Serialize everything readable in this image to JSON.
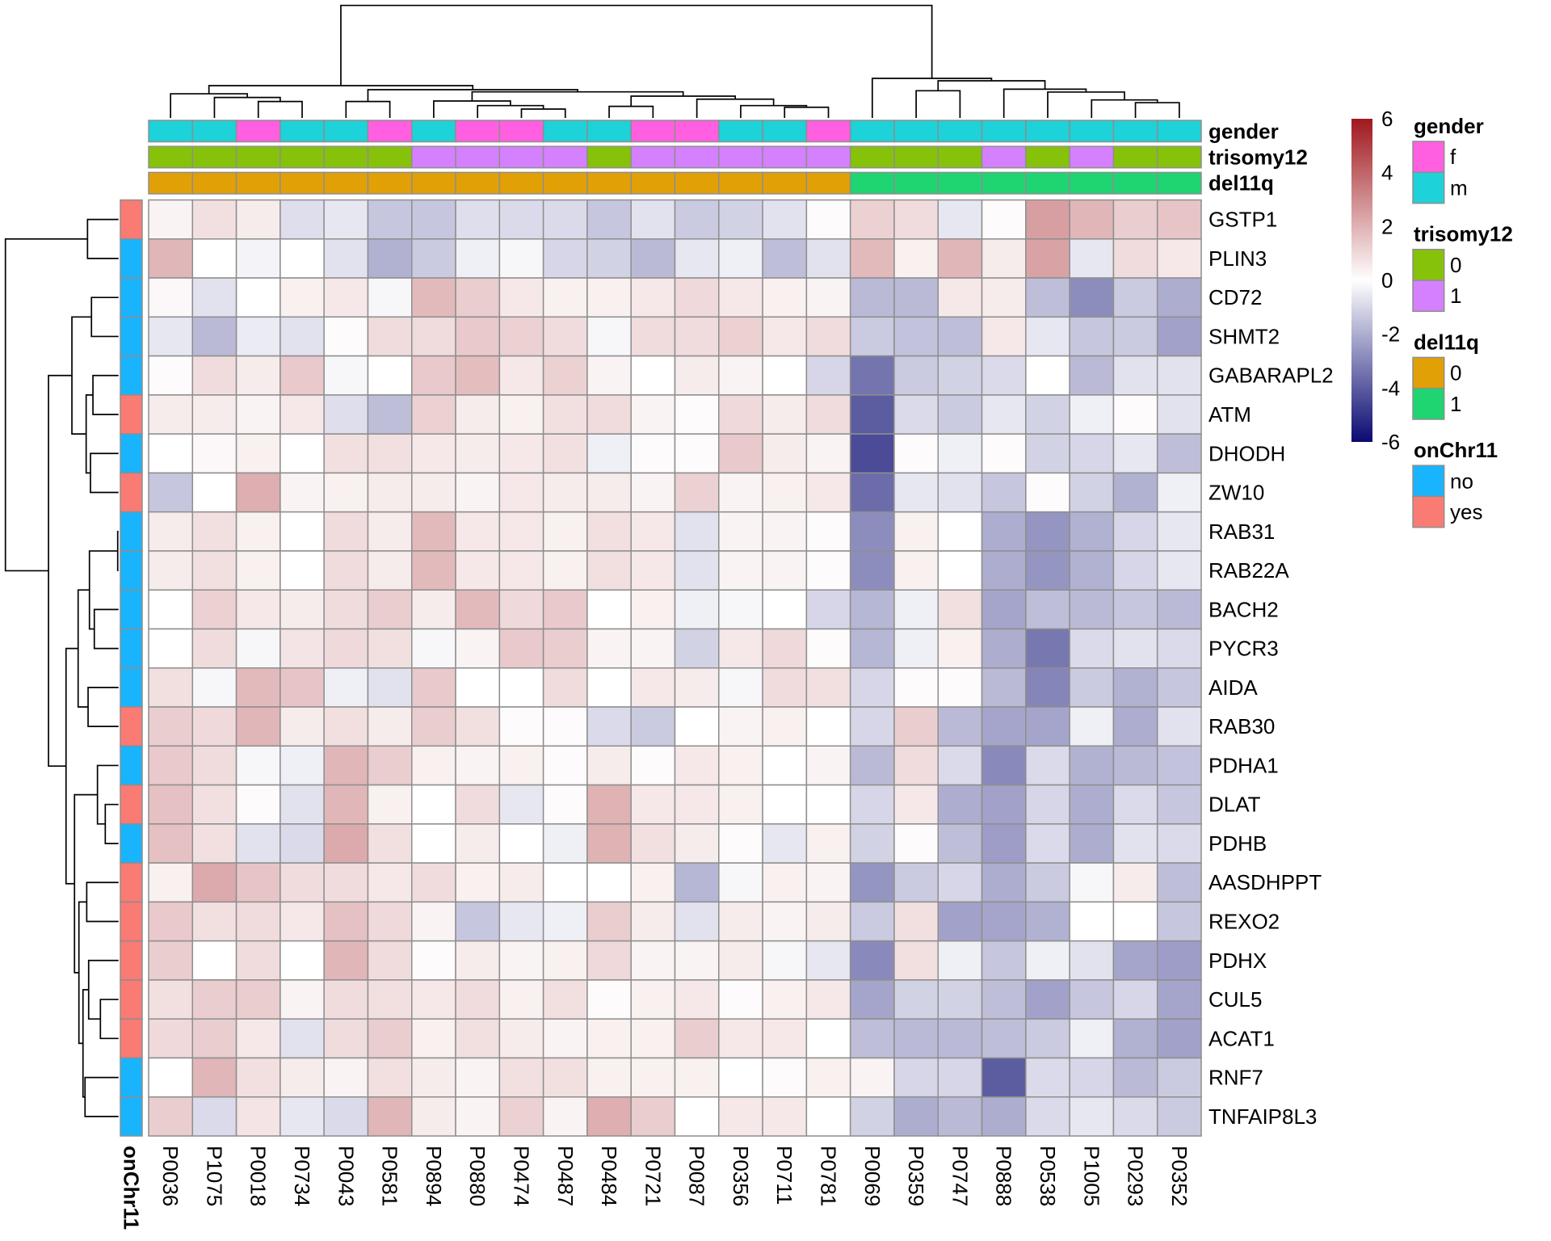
{
  "chart_data": {
    "type": "heatmap",
    "title": "",
    "rows": [
      "GSTP1",
      "PLIN3",
      "CD72",
      "SHMT2",
      "GABARAPL2",
      "ATM",
      "DHODH",
      "ZW10",
      "RAB31",
      "RAB22A",
      "BACH2",
      "PYCR3",
      "AIDA",
      "RAB30",
      "PDHA1",
      "DLAT",
      "PDHB",
      "AASDHPPT",
      "REXO2",
      "PDHX",
      "CUL5",
      "ACAT1",
      "RNF7",
      "TNFAIP8L3"
    ],
    "columns": [
      "P0036",
      "P1075",
      "P0018",
      "P0734",
      "P0043",
      "P0581",
      "P0894",
      "P0880",
      "P0474",
      "P0487",
      "P0484",
      "P0721",
      "P0087",
      "P0356",
      "P0711",
      "P0781",
      "P0069",
      "P0359",
      "P0747",
      "P0888",
      "P0538",
      "P1005",
      "P0293",
      "P0352"
    ],
    "values": [
      [
        0.3,
        0.8,
        0.5,
        -0.8,
        -0.6,
        -1.4,
        -1.4,
        -0.8,
        -0.9,
        -0.9,
        -1.4,
        -0.7,
        -1.3,
        -1.1,
        -0.7,
        0.1,
        1.2,
        0.9,
        -0.6,
        0.1,
        2.5,
        1.9,
        1.3,
        1.5
      ],
      [
        1.9,
        0.0,
        -0.3,
        0.0,
        -0.7,
        -1.9,
        -1.3,
        -0.4,
        -0.2,
        -1.0,
        -1.1,
        -1.7,
        -0.6,
        -0.4,
        -1.6,
        -0.7,
        1.8,
        0.4,
        1.9,
        0.5,
        2.4,
        -0.6,
        0.9,
        0.6
      ],
      [
        0.2,
        -0.7,
        0.0,
        0.4,
        0.6,
        -0.2,
        1.8,
        1.3,
        0.6,
        0.4,
        0.4,
        0.6,
        1.0,
        0.6,
        0.4,
        0.3,
        -1.7,
        -1.7,
        0.6,
        0.5,
        -1.6,
        -2.8,
        -1.3,
        -2.0
      ],
      [
        -0.6,
        -1.7,
        -0.5,
        -0.7,
        0.1,
        0.9,
        0.9,
        1.4,
        1.2,
        0.9,
        -0.2,
        0.9,
        0.9,
        1.2,
        0.6,
        0.9,
        -1.3,
        -1.5,
        -1.6,
        0.6,
        -0.6,
        -1.4,
        -1.3,
        -2.3
      ],
      [
        0.1,
        0.9,
        0.5,
        1.4,
        -0.2,
        0.0,
        1.4,
        1.7,
        0.6,
        1.2,
        0.3,
        0.0,
        0.5,
        0.3,
        0.0,
        -1.0,
        -3.4,
        -1.3,
        -1.1,
        -0.9,
        0.0,
        -1.7,
        -0.7,
        -0.7
      ],
      [
        0.5,
        0.5,
        0.3,
        0.6,
        -0.8,
        -1.6,
        1.2,
        0.5,
        0.4,
        0.8,
        0.9,
        0.3,
        0.1,
        1.0,
        0.5,
        0.9,
        -4.0,
        -0.9,
        -1.3,
        -0.6,
        -1.1,
        -0.4,
        0.1,
        -0.7
      ],
      [
        0.0,
        0.2,
        0.4,
        0.0,
        0.8,
        0.8,
        0.6,
        0.5,
        0.6,
        0.8,
        -0.4,
        0.1,
        0.1,
        1.4,
        0.5,
        0.3,
        -4.4,
        0.1,
        -0.4,
        0.1,
        -1.1,
        -1.0,
        -0.6,
        -1.6
      ],
      [
        -1.4,
        0.0,
        2.1,
        0.3,
        0.4,
        0.5,
        0.5,
        0.3,
        0.6,
        0.5,
        0.5,
        0.3,
        1.2,
        0.3,
        0.4,
        0.6,
        -3.6,
        -0.6,
        -0.7,
        -1.4,
        0.1,
        -1.1,
        -1.9,
        -0.4
      ],
      [
        0.5,
        0.8,
        0.4,
        0.0,
        0.9,
        0.5,
        1.8,
        0.6,
        0.6,
        0.4,
        0.8,
        0.6,
        -0.7,
        0.3,
        0.3,
        0.1,
        -2.8,
        0.4,
        0.0,
        -2.0,
        -2.6,
        -1.9,
        -1.0,
        -0.6
      ],
      [
        0.5,
        0.8,
        0.4,
        0.0,
        0.9,
        0.5,
        1.8,
        0.6,
        0.6,
        0.4,
        0.8,
        0.6,
        -0.7,
        0.3,
        0.3,
        0.1,
        -2.8,
        0.4,
        0.0,
        -2.0,
        -2.6,
        -1.9,
        -1.0,
        -0.6
      ],
      [
        0.0,
        1.2,
        0.6,
        0.5,
        0.9,
        1.3,
        0.5,
        1.8,
        1.0,
        1.4,
        0.0,
        0.4,
        -0.4,
        -0.2,
        0.0,
        -1.0,
        -1.8,
        -0.4,
        0.8,
        -2.2,
        -1.6,
        -1.7,
        -1.4,
        -1.7
      ],
      [
        0.0,
        0.9,
        -0.2,
        0.7,
        1.0,
        0.8,
        -0.2,
        0.3,
        1.4,
        1.3,
        0.3,
        0.3,
        -1.1,
        0.6,
        1.0,
        0.1,
        -1.8,
        -0.4,
        0.4,
        -2.0,
        -3.3,
        -0.9,
        -0.7,
        -0.9
      ],
      [
        0.8,
        -0.2,
        1.8,
        1.5,
        -0.4,
        -0.7,
        1.4,
        0.0,
        0.0,
        0.9,
        0.0,
        0.6,
        0.5,
        -0.2,
        0.9,
        0.8,
        -1.0,
        0.1,
        0.1,
        -1.7,
        -3.0,
        -1.3,
        -1.9,
        -1.4
      ],
      [
        1.3,
        1.0,
        1.9,
        0.5,
        0.8,
        0.5,
        1.3,
        0.8,
        0.1,
        0.1,
        -0.9,
        -1.3,
        0.0,
        0.3,
        0.4,
        0.0,
        -1.0,
        1.3,
        -1.7,
        -2.2,
        -2.2,
        -0.4,
        -2.0,
        -0.7
      ],
      [
        1.4,
        0.9,
        -0.2,
        -0.4,
        1.9,
        1.3,
        0.4,
        0.3,
        0.4,
        0.1,
        0.5,
        0.1,
        0.6,
        0.4,
        0.0,
        0.3,
        -1.7,
        0.9,
        -0.9,
        -2.9,
        -0.9,
        -1.9,
        -1.7,
        -1.5
      ],
      [
        1.6,
        0.8,
        0.1,
        -0.7,
        1.9,
        0.4,
        0.0,
        0.9,
        -0.6,
        0.1,
        2.0,
        0.6,
        0.6,
        0.4,
        0.0,
        0.0,
        -1.0,
        0.6,
        -2.0,
        -2.3,
        -1.0,
        -2.0,
        -0.9,
        -1.4
      ],
      [
        1.6,
        0.8,
        -0.7,
        -0.9,
        2.2,
        0.8,
        0.0,
        0.5,
        0.0,
        -0.4,
        2.0,
        0.8,
        0.5,
        0.1,
        -0.6,
        0.4,
        -1.1,
        0.1,
        -1.6,
        -2.4,
        -0.9,
        -2.0,
        -0.7,
        -0.9
      ],
      [
        0.4,
        2.2,
        1.5,
        0.9,
        0.9,
        0.6,
        0.9,
        0.4,
        0.5,
        0.0,
        0.0,
        0.4,
        -1.8,
        -0.2,
        0.4,
        0.3,
        -2.6,
        -1.3,
        -1.0,
        -2.0,
        -1.3,
        -0.2,
        0.5,
        -1.6
      ],
      [
        1.4,
        0.8,
        0.9,
        0.6,
        1.6,
        1.0,
        0.3,
        -1.4,
        -0.6,
        -0.4,
        1.3,
        0.5,
        -0.7,
        0.5,
        0.3,
        0.5,
        -1.3,
        0.8,
        -2.3,
        -2.2,
        -1.9,
        0.0,
        0.0,
        -1.4
      ],
      [
        1.3,
        0.0,
        0.9,
        0.0,
        1.9,
        0.9,
        0.1,
        0.5,
        0.3,
        0.4,
        1.0,
        0.3,
        0.3,
        0.5,
        -0.2,
        -0.6,
        -2.9,
        0.8,
        -0.4,
        -1.4,
        -0.4,
        -0.7,
        -2.2,
        -2.4
      ],
      [
        0.8,
        1.3,
        1.3,
        0.3,
        0.9,
        0.8,
        0.6,
        0.9,
        0.4,
        0.8,
        0.1,
        0.4,
        0.6,
        0.1,
        0.4,
        0.6,
        -2.2,
        -1.1,
        -1.1,
        -1.6,
        -2.3,
        -1.4,
        -1.0,
        -2.2
      ],
      [
        1.0,
        1.3,
        0.6,
        -0.7,
        0.9,
        1.3,
        0.4,
        0.8,
        0.5,
        0.3,
        0.4,
        0.4,
        1.3,
        0.6,
        0.6,
        0.0,
        -1.6,
        -1.7,
        -1.7,
        -1.6,
        -1.3,
        -0.4,
        -1.9,
        -2.3
      ],
      [
        0.0,
        1.9,
        0.8,
        0.5,
        0.3,
        0.8,
        0.5,
        0.3,
        0.8,
        0.8,
        0.4,
        0.4,
        0.4,
        0.0,
        0.1,
        0.4,
        0.3,
        -1.0,
        -1.0,
        -4.0,
        -0.9,
        -1.0,
        -1.7,
        -1.3
      ],
      [
        1.3,
        -0.9,
        0.7,
        -0.6,
        -0.9,
        1.9,
        0.5,
        0.3,
        1.2,
        0.3,
        2.1,
        1.3,
        0.0,
        0.6,
        0.6,
        0.0,
        -1.1,
        -2.0,
        -1.7,
        -2.0,
        -0.9,
        -0.6,
        -0.9,
        -1.3
      ]
    ],
    "color_scale": {
      "min": -6,
      "max": 6,
      "colors": [
        "#0a0a72",
        "#ffffff",
        "#a0181e"
      ],
      "ticks": [
        6,
        4,
        2,
        0,
        -2,
        -4,
        -6
      ],
      "tick_labels": [
        "6",
        "4",
        "2",
        "0",
        "-2",
        "-4",
        "-6"
      ]
    },
    "column_annotation_tracks": [
      {
        "name": "gender",
        "values": [
          "m",
          "m",
          "f",
          "m",
          "m",
          "f",
          "m",
          "f",
          "f",
          "m",
          "m",
          "f",
          "f",
          "m",
          "m",
          "f",
          "m",
          "m",
          "m",
          "m",
          "m",
          "m",
          "m",
          "m"
        ]
      },
      {
        "name": "trisomy12",
        "values": [
          "0",
          "0",
          "0",
          "0",
          "0",
          "0",
          "1",
          "1",
          "1",
          "1",
          "0",
          "1",
          "1",
          "1",
          "1",
          "1",
          "0",
          "0",
          "0",
          "1",
          "0",
          "1",
          "0",
          "0"
        ]
      },
      {
        "name": "del11q",
        "values": [
          "0",
          "0",
          "0",
          "0",
          "0",
          "0",
          "0",
          "0",
          "0",
          "0",
          "0",
          "0",
          "0",
          "0",
          "0",
          "0",
          "1",
          "1",
          "1",
          "1",
          "1",
          "1",
          "1",
          "1"
        ]
      }
    ],
    "row_annotation_tracks": [
      {
        "name": "onChr11",
        "values": [
          "yes",
          "no",
          "no",
          "no",
          "no",
          "yes",
          "no",
          "yes",
          "no",
          "no",
          "no",
          "no",
          "no",
          "yes",
          "no",
          "yes",
          "no",
          "yes",
          "yes",
          "yes",
          "yes",
          "yes",
          "no",
          "no"
        ]
      }
    ],
    "legends": [
      {
        "title": "gender",
        "items": [
          {
            "label": "f",
            "color": "#ff5fe0"
          },
          {
            "label": "m",
            "color": "#1dd2d8"
          }
        ]
      },
      {
        "title": "trisomy12",
        "items": [
          {
            "label": "0",
            "color": "#86c20a"
          },
          {
            "label": "1",
            "color": "#d580ff"
          }
        ]
      },
      {
        "title": "del11q",
        "items": [
          {
            "label": "0",
            "color": "#e2a007"
          },
          {
            "label": "1",
            "color": "#1ed572"
          }
        ]
      },
      {
        "title": "onChr11",
        "items": [
          {
            "label": "no",
            "color": "#19b4fe"
          },
          {
            "label": "yes",
            "color": "#fa7a74"
          }
        ]
      }
    ],
    "row_dendrogram": {
      "h": 1,
      "c": [
        {
          "h": 0.274,
          "c": [
            0,
            1
          ]
        },
        {
          "h": 0.619,
          "c": [
            {
              "h": 0.412,
              "c": [
                {
                  "h": 0.239,
                  "c": [
                    2,
                    3
                  ]
                },
                {
                  "h": 0.286,
                  "c": [
                    {
                      "h": 0.226,
                      "c": [
                        4,
                        5
                      ]
                    },
                    {
                      "h": 0.248,
                      "c": [
                        6,
                        7
                      ]
                    }
                  ]
                }
              ]
            },
            {
              "h": 0.464,
              "c": [
                {
                  "h": 0.357,
                  "c": [
                    {
                      "h": 0.257,
                      "c": [
                        {
                          "h": 0.007,
                          "c": [
                            8,
                            9
                          ]
                        },
                        {
                          "h": 0.214,
                          "c": [
                            10,
                            11
                          ]
                        }
                      ]
                    },
                    {
                      "h": 0.269,
                      "c": [
                        12,
                        13
                      ]
                    }
                  ]
                },
                {
                  "h": 0.389,
                  "c": [
                    {
                      "h": 0.186,
                      "c": [
                        14,
                        {
                          "h": 0.117,
                          "c": [
                            15,
                            16
                          ]
                        }
                      ]
                    },
                    {
                      "h": 0.35,
                      "c": [
                        {
                          "h": 0.281,
                          "c": [
                            17,
                            18
                          ]
                        },
                        {
                          "h": 0.314,
                          "c": [
                            {
                              "h": 0.264,
                              "c": [
                                19,
                                {
                                  "h": 0.16,
                                  "c": [
                                    20,
                                    21
                                  ]
                                }
                              ]
                            },
                            {
                              "h": 0.296,
                              "c": [
                                22,
                                23
                              ]
                            }
                          ]
                        }
                      ]
                    }
                  ]
                }
              ]
            }
          ]
        }
      ]
    },
    "column_dendrogram": {
      "h": 1,
      "c": [
        {
          "h": 0.287,
          "c": [
            {
              "h": 0.215,
              "c": [
                0,
                {
                  "h": 0.182,
                  "c": [
                    1,
                    {
                      "h": 0.146,
                      "c": [
                        2,
                        3
                      ]
                    }
                  ]
                }
              ]
            },
            {
              "h": 0.251,
              "c": [
                {
                  "h": 0.146,
                  "c": [
                    4,
                    5
                  ]
                },
                {
                  "h": 0.232,
                  "c": [
                    {
                      "h": 0.151,
                      "c": [
                        6,
                        {
                          "h": 0.11,
                          "c": [
                            7,
                            {
                              "h": 0.079,
                              "c": [
                                8,
                                9
                              ]
                            }
                          ]
                        }
                      ]
                    },
                    {
                      "h": 0.194,
                      "c": [
                        {
                          "h": 0.103,
                          "c": [
                            10,
                            11
                          ]
                        },
                        {
                          "h": 0.167,
                          "c": [
                            12,
                            {
                              "h": 0.11,
                              "c": [
                                13,
                                {
                                  "h": 0.095,
                                  "c": [
                                    14,
                                    15
                                  ]
                                }
                              ]
                            }
                          ]
                        }
                      ]
                    }
                  ]
                }
              ]
            }
          ]
        },
        {
          "h": 0.352,
          "c": [
            16,
            {
              "h": 0.33,
              "c": [
                {
                  "h": 0.242,
                  "c": [
                    17,
                    18
                  ]
                },
                {
                  "h": 0.256,
                  "c": [
                    19,
                    {
                      "h": 0.23,
                      "c": [
                        20,
                        {
                          "h": 0.16,
                          "c": [
                            21,
                            {
                              "h": 0.136,
                              "c": [
                                22,
                                23
                              ]
                            }
                          ]
                        }
                      ]
                    }
                  ]
                }
              ]
            }
          ]
        }
      ]
    }
  }
}
